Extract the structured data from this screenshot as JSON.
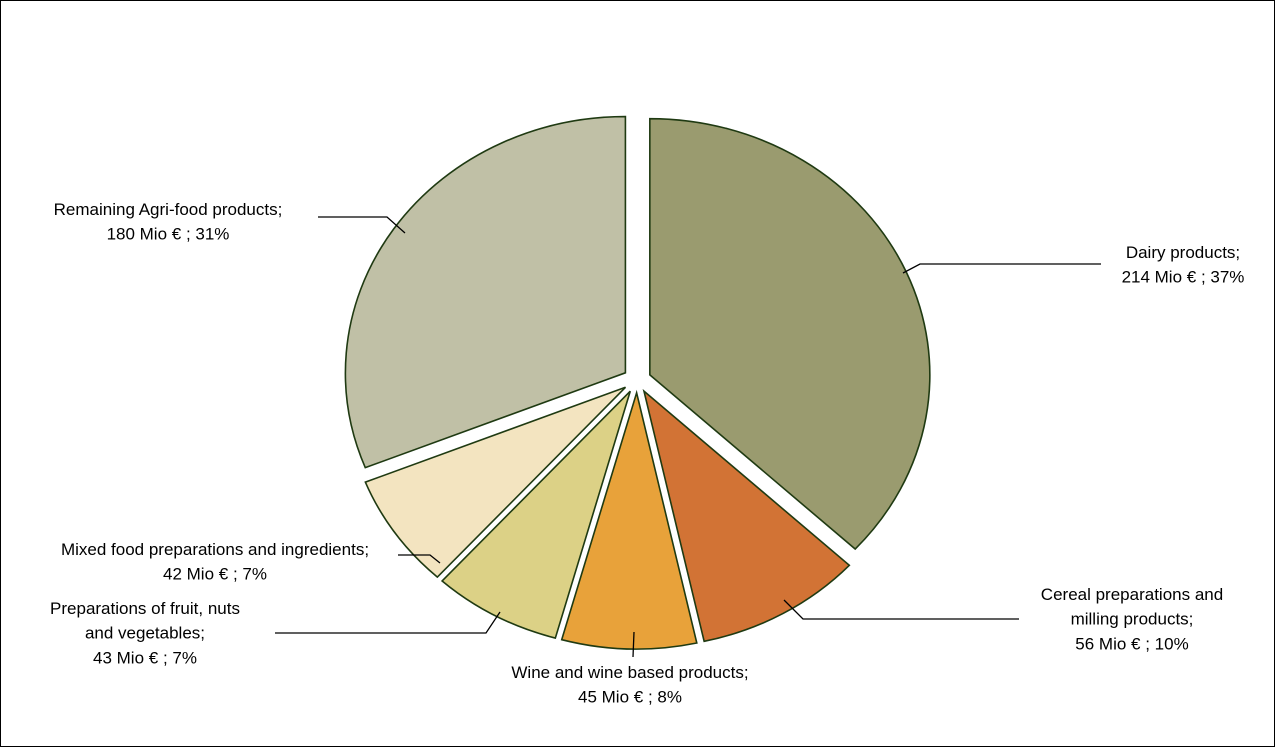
{
  "chart_data": {
    "type": "pie",
    "slices": [
      {
        "name": "Dairy products",
        "value": 214,
        "percent": 37,
        "color": "#9a9b6f",
        "label_lines": [
          "Dairy products;",
          "214 Mio € ; 37%"
        ]
      },
      {
        "name": "Cereal preparations and milling products",
        "value": 56,
        "percent": 10,
        "color": "#d27335",
        "label_lines": [
          "Cereal preparations and",
          "milling products;",
          "56 Mio € ; 10%"
        ]
      },
      {
        "name": "Wine and wine based products",
        "value": 45,
        "percent": 8,
        "color": "#e8a23a",
        "label_lines": [
          "Wine and wine based products;",
          "45 Mio € ; 8%"
        ]
      },
      {
        "name": "Preparations of fruit, nuts and vegetables",
        "value": 43,
        "percent": 7,
        "color": "#dcd186",
        "label_lines": [
          "Preparations of fruit, nuts",
          "and vegetables;",
          "43 Mio € ; 7%"
        ]
      },
      {
        "name": "Mixed food preparations and ingredients",
        "value": 42,
        "percent": 7,
        "color": "#f3e4c0",
        "label_lines": [
          "Mixed food preparations and ingredients;",
          "42 Mio € ; 7%"
        ]
      },
      {
        "name": "Remaining Agri-food products",
        "value": 180,
        "percent": 31,
        "color": "#c0c0a6",
        "label_lines": [
          "Remaining Agri-food products;",
          "180 Mio € ; 31%"
        ]
      }
    ],
    "slice_outline_color": "#1f3a12",
    "leader_line_color": "#000000"
  }
}
